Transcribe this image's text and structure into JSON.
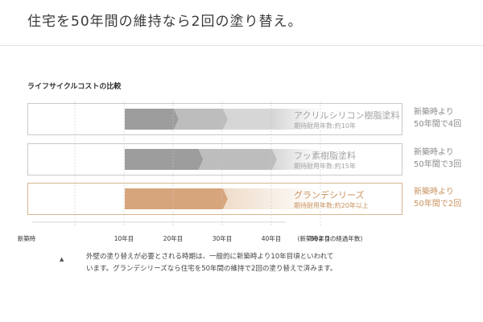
{
  "page": {
    "title": "住宅を50年間の維持なら2回の塗り替え。",
    "subtitle": "ライフサイクルコストの比較"
  },
  "rows": [
    {
      "name": "アクリルシリコン樹脂塗料",
      "life": "期待耐用年数:約10年",
      "side_line1": "新築時より",
      "side_line2": "50年間で4回",
      "repaint_years": [
        10,
        20,
        30,
        40
      ],
      "cycle_years": 10,
      "style": "gray"
    },
    {
      "name": "フッ素樹脂塗料",
      "life": "期待耐用年数:約15年",
      "side_line1": "新築時より",
      "side_line2": "50年間で3回",
      "repaint_years": [
        10,
        25,
        40
      ],
      "cycle_years": 15,
      "style": "gray"
    },
    {
      "name": "グランデシリーズ",
      "life": "期待耐用年数:約20年以上",
      "side_line1": "新築時より",
      "side_line2": "50年間で2回",
      "repaint_years": [
        10,
        30
      ],
      "cycle_years": 20,
      "style": "gold"
    }
  ],
  "axis": {
    "ticks": [
      {
        "year": 0,
        "label": "新築時"
      },
      {
        "year": 10,
        "label": "10年目"
      },
      {
        "year": 20,
        "label": "20年目"
      },
      {
        "year": 30,
        "label": "30年目"
      },
      {
        "year": 40,
        "label": "40年目"
      },
      {
        "year": 50,
        "label": "50年目"
      }
    ],
    "caption": "(新築時よりの経過年数)"
  },
  "note": {
    "line1": "外壁の塗り替えが必要とされる時期は、一般的に新築時より10年目頃といわれて",
    "line2": "います。グランデシリーズなら住宅を50年間の維持で2回の塗り替えで済みます。"
  },
  "colors": {
    "gray_dark": "#9d9d9d",
    "gray_mid": "#bdbdbd",
    "gray_light": "#d6d6d6",
    "gold_dark": "#d7a57c",
    "gold_light": "#efdcc9",
    "gold_text": "#c8935f",
    "border": "#c9c9c9"
  }
}
